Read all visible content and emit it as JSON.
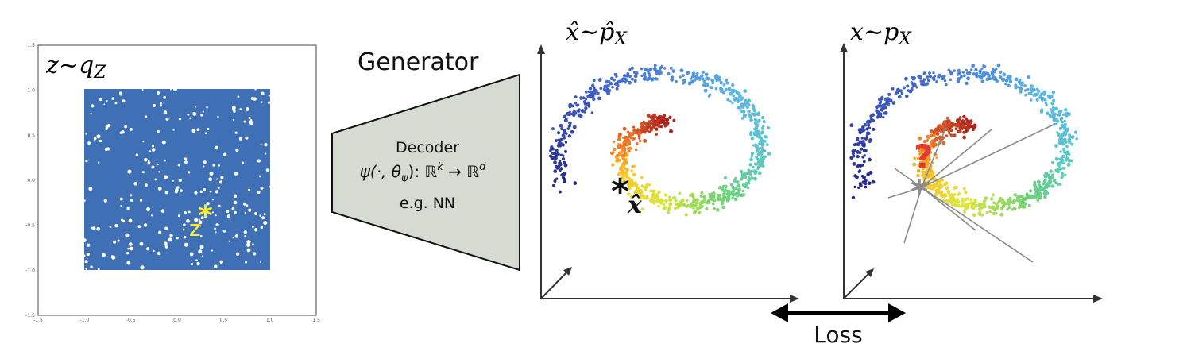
{
  "latent_panel": {
    "label_var": "z",
    "label_op": "~",
    "label_dist": "q",
    "label_sub": "Z",
    "marker_label": "z",
    "marker_symbol": "*",
    "x_ticks": [
      "-1.5",
      "-1.0",
      "-0.5",
      "0.0",
      "0.5",
      "1.0",
      "1.5"
    ],
    "y_ticks": [
      "1.5",
      "1.0",
      "0.5",
      "0.0",
      "-0.5",
      "-1.0",
      "-1.5"
    ],
    "point_color": "#3f6fb5",
    "marker_color": "#ffee22"
  },
  "generator": {
    "title": "Generator",
    "line1": "Decoder",
    "line2_func": "ψ(·, θ",
    "line2_sub": "ψ",
    "line2_rest": "): ℝ",
    "line2_k": "k",
    "line2_arrow": " → ℝ",
    "line2_d": "d",
    "line3": "e.g. NN",
    "fill_color": "#d6dbd1"
  },
  "generated_panel": {
    "label_var": "x̂",
    "label_op": "~",
    "label_dist": "p̂",
    "label_sub": "X",
    "marker_symbol": "*",
    "marker_label": "x̂"
  },
  "data_panel": {
    "label_var": "x",
    "label_op": "~",
    "label_dist": "p",
    "label_sub": "X",
    "marker_symbol": "*",
    "question": "?",
    "question_color": "#e53b2c"
  },
  "loss": {
    "label": "Loss"
  }
}
